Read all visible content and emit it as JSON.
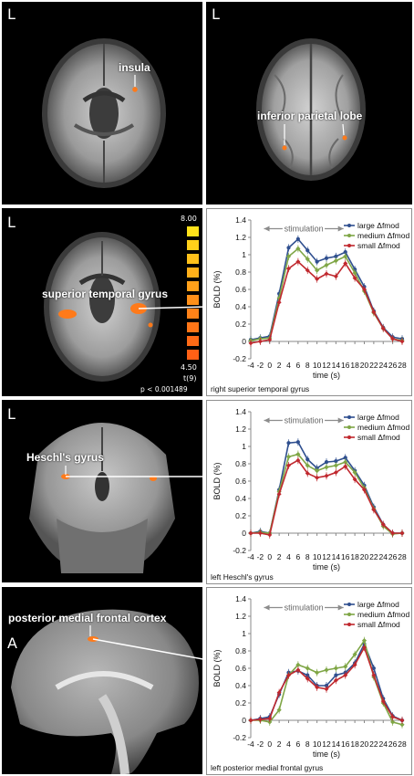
{
  "panels": {
    "top_left": {
      "side": "L",
      "label": "insula"
    },
    "top_right": {
      "side": "L",
      "label": "inferior parietal lobe"
    },
    "row1": {
      "side": "L",
      "label": "superior temporal gyrus",
      "colorbar": {
        "max": "8.00",
        "min": "4.50",
        "stat": "t(9)",
        "p": "p < 0.001489"
      }
    },
    "row2": {
      "side": "L",
      "label": "Heschl's gyrus"
    },
    "row3": {
      "side": "A",
      "label": "posterior medial frontal cortex"
    }
  },
  "colors": {
    "large": "#2f4f8f",
    "medium": "#7fa646",
    "small": "#c0282e",
    "stim": "#8c8c8c"
  },
  "chart_data": [
    {
      "type": "line",
      "caption": "right superior temporal gyrus",
      "annotation": "stimulation",
      "xlabel": "time (s)",
      "ylabel": "BOLD (%)",
      "xlim": [
        -4,
        28
      ],
      "ylim": [
        -0.2,
        1.4
      ],
      "x": [
        -4,
        -2,
        0,
        2,
        4,
        6,
        8,
        10,
        12,
        14,
        16,
        18,
        20,
        22,
        24,
        26,
        28
      ],
      "xticks": [
        "-4",
        "-2",
        "0",
        "2",
        "4",
        "6",
        "8",
        "10",
        "12",
        "14",
        "16",
        "18",
        "20",
        "22",
        "24",
        "26",
        "28"
      ],
      "yticks": [
        "-0.2",
        "0",
        "0.2",
        "0.4",
        "0.6",
        "0.8",
        "1",
        "1.2",
        "1.4"
      ],
      "series": [
        {
          "name": "large Δfmod",
          "key": "large",
          "values": [
            0.02,
            0.04,
            0.06,
            0.55,
            1.08,
            1.18,
            1.05,
            0.92,
            0.96,
            0.98,
            1.03,
            0.83,
            0.63,
            0.35,
            0.16,
            0.05,
            0.03
          ]
        },
        {
          "name": "medium Δfmod",
          "key": "medium",
          "values": [
            0.01,
            0.03,
            0.04,
            0.5,
            0.98,
            1.07,
            0.95,
            0.82,
            0.88,
            0.93,
            0.98,
            0.79,
            0.58,
            0.33,
            0.15,
            0.03,
            0.01
          ]
        },
        {
          "name": "small Δfmod",
          "key": "small",
          "values": [
            -0.02,
            0.0,
            0.02,
            0.45,
            0.84,
            0.92,
            0.82,
            0.72,
            0.78,
            0.75,
            0.9,
            0.73,
            0.6,
            0.34,
            0.15,
            0.03,
            0.0
          ]
        }
      ]
    },
    {
      "type": "line",
      "caption": "left Heschl's gyrus",
      "annotation": "stimulation",
      "xlabel": "time (s)",
      "ylabel": "BOLD (%)",
      "xlim": [
        -4,
        28
      ],
      "ylim": [
        -0.2,
        1.4
      ],
      "x": [
        -4,
        -2,
        0,
        2,
        4,
        6,
        8,
        10,
        12,
        14,
        16,
        18,
        20,
        22,
        24,
        26,
        28
      ],
      "xticks": [
        "-4",
        "-2",
        "0",
        "2",
        "4",
        "6",
        "8",
        "10",
        "12",
        "14",
        "16",
        "18",
        "20",
        "22",
        "24",
        "26",
        "28"
      ],
      "yticks": [
        "-0.2",
        "0",
        "0.2",
        "0.4",
        "0.6",
        "0.8",
        "1",
        "1.2",
        "1.4"
      ],
      "series": [
        {
          "name": "large Δfmod",
          "key": "large",
          "values": [
            0.0,
            0.02,
            0.0,
            0.5,
            1.04,
            1.05,
            0.85,
            0.75,
            0.82,
            0.83,
            0.87,
            0.72,
            0.55,
            0.3,
            0.1,
            0.0,
            0.0
          ]
        },
        {
          "name": "medium Δfmod",
          "key": "medium",
          "values": [
            0.0,
            0.01,
            0.0,
            0.48,
            0.88,
            0.91,
            0.78,
            0.72,
            0.76,
            0.78,
            0.82,
            0.7,
            0.52,
            0.28,
            0.08,
            -0.01,
            0.0
          ]
        },
        {
          "name": "small Δfmod",
          "key": "small",
          "values": [
            0.0,
            0.0,
            -0.02,
            0.45,
            0.78,
            0.84,
            0.69,
            0.64,
            0.66,
            0.7,
            0.77,
            0.62,
            0.5,
            0.27,
            0.1,
            0.0,
            0.0
          ]
        }
      ]
    },
    {
      "type": "line",
      "caption": "left posterior medial frontal gyrus",
      "annotation": "stimulation",
      "xlabel": "time (s)",
      "ylabel": "BOLD (%)",
      "xlim": [
        -4,
        28
      ],
      "ylim": [
        -0.2,
        1.4
      ],
      "x": [
        -4,
        -2,
        0,
        2,
        4,
        6,
        8,
        10,
        12,
        14,
        16,
        18,
        20,
        22,
        24,
        26,
        28
      ],
      "xticks": [
        "-4",
        "-2",
        "0",
        "2",
        "4",
        "6",
        "8",
        "10",
        "12",
        "14",
        "16",
        "18",
        "20",
        "22",
        "24",
        "26",
        "28"
      ],
      "yticks": [
        "-0.2",
        "0",
        "0.2",
        "0.4",
        "0.6",
        "0.8",
        "1",
        "1.2",
        "1.4"
      ],
      "series": [
        {
          "name": "large Δfmod",
          "key": "large",
          "values": [
            0.0,
            0.02,
            0.04,
            0.3,
            0.55,
            0.57,
            0.52,
            0.4,
            0.4,
            0.52,
            0.55,
            0.66,
            0.88,
            0.6,
            0.25,
            0.05,
            0.0
          ]
        },
        {
          "name": "medium Δfmod",
          "key": "medium",
          "values": [
            0.0,
            0.0,
            -0.02,
            0.12,
            0.52,
            0.64,
            0.6,
            0.55,
            0.58,
            0.6,
            0.62,
            0.76,
            0.92,
            0.5,
            0.2,
            -0.02,
            -0.05
          ]
        },
        {
          "name": "small Δfmod",
          "key": "small",
          "values": [
            0.0,
            0.01,
            0.02,
            0.32,
            0.52,
            0.58,
            0.48,
            0.38,
            0.36,
            0.46,
            0.52,
            0.64,
            0.84,
            0.52,
            0.22,
            0.04,
            0.0
          ]
        }
      ]
    }
  ]
}
